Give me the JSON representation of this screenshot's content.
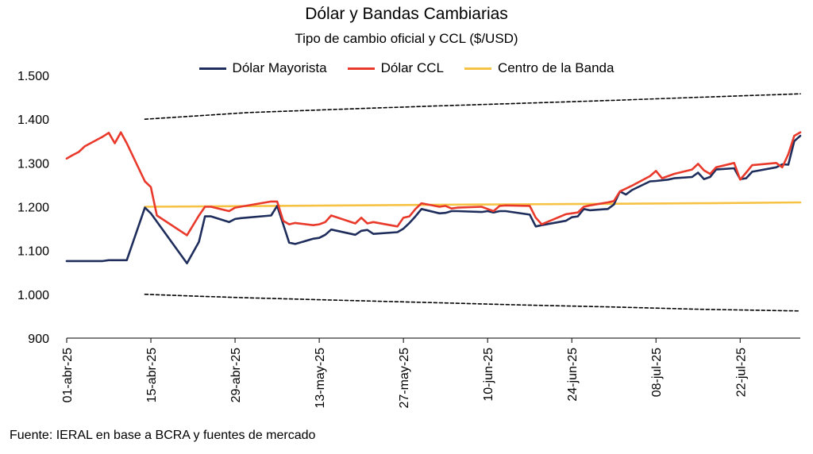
{
  "chart_data": {
    "type": "line",
    "title": "Dólar y Bandas Cambiarias",
    "subtitle": "Tipo de cambio oficial y CCL ($/USD)",
    "xlabel": "",
    "ylabel": "",
    "ylim": [
      900,
      1500
    ],
    "yticks": [
      900,
      1000,
      1100,
      1200,
      1300,
      1400,
      1500
    ],
    "ytick_labels": [
      "900",
      "1.000",
      "1.100",
      "1.200",
      "1.300",
      "1.400",
      "1.500"
    ],
    "x_range": [
      "2025-04-01",
      "2025-08-01"
    ],
    "x_tick_dates": [
      "2025-04-01",
      "2025-04-15",
      "2025-04-29",
      "2025-05-13",
      "2025-05-27",
      "2025-06-10",
      "2025-06-24",
      "2025-07-08",
      "2025-07-22"
    ],
    "x_tick_labels": [
      "01-abr-25",
      "15-abr-25",
      "29-abr-25",
      "13-may-25",
      "27-may-25",
      "10-jun-25",
      "24-jun-25",
      "08-jul-25",
      "22-jul-25"
    ],
    "grid": false,
    "legend_position": "top",
    "series": [
      {
        "name": "Dólar Mayorista",
        "color": "#1f2d5c",
        "style": "solid",
        "points": [
          [
            "2025-04-01",
            1076
          ],
          [
            "2025-04-04",
            1076
          ],
          [
            "2025-04-07",
            1076
          ],
          [
            "2025-04-08",
            1078
          ],
          [
            "2025-04-11",
            1078
          ],
          [
            "2025-04-14",
            1198
          ],
          [
            "2025-04-15",
            1185
          ],
          [
            "2025-04-21",
            1071
          ],
          [
            "2025-04-23",
            1120
          ],
          [
            "2025-04-24",
            1178
          ],
          [
            "2025-04-25",
            1178
          ],
          [
            "2025-04-28",
            1165
          ],
          [
            "2025-04-29",
            1172
          ],
          [
            "2025-04-30",
            1174
          ],
          [
            "2025-05-05",
            1180
          ],
          [
            "2025-05-06",
            1202
          ],
          [
            "2025-05-07",
            1160
          ],
          [
            "2025-05-08",
            1118
          ],
          [
            "2025-05-09",
            1115
          ],
          [
            "2025-05-12",
            1127
          ],
          [
            "2025-05-13",
            1129
          ],
          [
            "2025-05-14",
            1136
          ],
          [
            "2025-05-15",
            1148
          ],
          [
            "2025-05-19",
            1136
          ],
          [
            "2025-05-20",
            1145
          ],
          [
            "2025-05-21",
            1147
          ],
          [
            "2025-05-22",
            1138
          ],
          [
            "2025-05-26",
            1142
          ],
          [
            "2025-05-27",
            1150
          ],
          [
            "2025-05-28",
            1163
          ],
          [
            "2025-05-29",
            1178
          ],
          [
            "2025-05-30",
            1195
          ],
          [
            "2025-06-02",
            1185
          ],
          [
            "2025-06-03",
            1186
          ],
          [
            "2025-06-04",
            1190
          ],
          [
            "2025-06-05",
            1190
          ],
          [
            "2025-06-09",
            1188
          ],
          [
            "2025-06-10",
            1190
          ],
          [
            "2025-06-11",
            1187
          ],
          [
            "2025-06-12",
            1190
          ],
          [
            "2025-06-13",
            1190
          ],
          [
            "2025-06-17",
            1182
          ],
          [
            "2025-06-18",
            1155
          ],
          [
            "2025-06-19",
            1158
          ],
          [
            "2025-06-23",
            1168
          ],
          [
            "2025-06-24",
            1176
          ],
          [
            "2025-06-25",
            1178
          ],
          [
            "2025-06-26",
            1195
          ],
          [
            "2025-06-27",
            1192
          ],
          [
            "2025-06-30",
            1195
          ],
          [
            "2025-07-01",
            1205
          ],
          [
            "2025-07-02",
            1235
          ],
          [
            "2025-07-03",
            1228
          ],
          [
            "2025-07-04",
            1238
          ],
          [
            "2025-07-07",
            1258
          ],
          [
            "2025-07-08",
            1259
          ],
          [
            "2025-07-10",
            1262
          ],
          [
            "2025-07-11",
            1265
          ],
          [
            "2025-07-14",
            1268
          ],
          [
            "2025-07-15",
            1278
          ],
          [
            "2025-07-16",
            1263
          ],
          [
            "2025-07-17",
            1268
          ],
          [
            "2025-07-18",
            1285
          ],
          [
            "2025-07-21",
            1288
          ],
          [
            "2025-07-22",
            1263
          ],
          [
            "2025-07-23",
            1265
          ],
          [
            "2025-07-24",
            1280
          ],
          [
            "2025-07-28",
            1290
          ],
          [
            "2025-07-29",
            1297
          ],
          [
            "2025-07-30",
            1296
          ],
          [
            "2025-07-31",
            1350
          ],
          [
            "2025-08-01",
            1362
          ]
        ]
      },
      {
        "name": "Dólar CCL",
        "color": "#e8392b",
        "style": "solid",
        "points": [
          [
            "2025-04-01",
            1310
          ],
          [
            "2025-04-02",
            1318
          ],
          [
            "2025-04-03",
            1325
          ],
          [
            "2025-04-04",
            1338
          ],
          [
            "2025-04-07",
            1360
          ],
          [
            "2025-04-08",
            1369
          ],
          [
            "2025-04-09",
            1345
          ],
          [
            "2025-04-10",
            1370
          ],
          [
            "2025-04-11",
            1345
          ],
          [
            "2025-04-14",
            1258
          ],
          [
            "2025-04-15",
            1245
          ],
          [
            "2025-04-16",
            1180
          ],
          [
            "2025-04-21",
            1135
          ],
          [
            "2025-04-23",
            1180
          ],
          [
            "2025-04-24",
            1200
          ],
          [
            "2025-04-25",
            1200
          ],
          [
            "2025-04-28",
            1190
          ],
          [
            "2025-04-29",
            1198
          ],
          [
            "2025-05-05",
            1212
          ],
          [
            "2025-05-06",
            1212
          ],
          [
            "2025-05-07",
            1168
          ],
          [
            "2025-05-08",
            1160
          ],
          [
            "2025-05-09",
            1163
          ],
          [
            "2025-05-12",
            1158
          ],
          [
            "2025-05-13",
            1160
          ],
          [
            "2025-05-14",
            1165
          ],
          [
            "2025-05-15",
            1180
          ],
          [
            "2025-05-19",
            1162
          ],
          [
            "2025-05-20",
            1175
          ],
          [
            "2025-05-21",
            1162
          ],
          [
            "2025-05-22",
            1165
          ],
          [
            "2025-05-26",
            1155
          ],
          [
            "2025-05-27",
            1175
          ],
          [
            "2025-05-28",
            1178
          ],
          [
            "2025-05-29",
            1195
          ],
          [
            "2025-05-30",
            1208
          ],
          [
            "2025-06-02",
            1200
          ],
          [
            "2025-06-03",
            1202
          ],
          [
            "2025-06-04",
            1196
          ],
          [
            "2025-06-05",
            1198
          ],
          [
            "2025-06-09",
            1200
          ],
          [
            "2025-06-10",
            1195
          ],
          [
            "2025-06-11",
            1190
          ],
          [
            "2025-06-12",
            1202
          ],
          [
            "2025-06-13",
            1203
          ],
          [
            "2025-06-17",
            1202
          ],
          [
            "2025-06-18",
            1175
          ],
          [
            "2025-06-19",
            1160
          ],
          [
            "2025-06-23",
            1183
          ],
          [
            "2025-06-24",
            1185
          ],
          [
            "2025-06-25",
            1187
          ],
          [
            "2025-06-26",
            1200
          ],
          [
            "2025-06-27",
            1203
          ],
          [
            "2025-06-30",
            1210
          ],
          [
            "2025-07-01",
            1213
          ],
          [
            "2025-07-02",
            1235
          ],
          [
            "2025-07-04",
            1248
          ],
          [
            "2025-07-07",
            1270
          ],
          [
            "2025-07-08",
            1282
          ],
          [
            "2025-07-09",
            1265
          ],
          [
            "2025-07-10",
            1270
          ],
          [
            "2025-07-11",
            1275
          ],
          [
            "2025-07-14",
            1285
          ],
          [
            "2025-07-15",
            1298
          ],
          [
            "2025-07-16",
            1283
          ],
          [
            "2025-07-17",
            1275
          ],
          [
            "2025-07-18",
            1290
          ],
          [
            "2025-07-21",
            1300
          ],
          [
            "2025-07-22",
            1262
          ],
          [
            "2025-07-23",
            1278
          ],
          [
            "2025-07-24",
            1295
          ],
          [
            "2025-07-28",
            1300
          ],
          [
            "2025-07-29",
            1290
          ],
          [
            "2025-07-30",
            1320
          ],
          [
            "2025-07-31",
            1362
          ],
          [
            "2025-08-01",
            1370
          ]
        ]
      },
      {
        "name": "Centro de la Banda",
        "color": "#f6c244",
        "style": "solid",
        "points": [
          [
            "2025-04-14",
            1200
          ],
          [
            "2025-06-08",
            1205
          ],
          [
            "2025-07-15",
            1208
          ],
          [
            "2025-08-01",
            1210
          ]
        ]
      },
      {
        "name": "",
        "color": "#000000",
        "style": "dashed",
        "points": [
          [
            "2025-04-14",
            1400
          ],
          [
            "2025-04-22",
            1407
          ],
          [
            "2025-05-01",
            1415
          ],
          [
            "2025-05-15",
            1422
          ],
          [
            "2025-06-01",
            1430
          ],
          [
            "2025-06-15",
            1436
          ],
          [
            "2025-07-01",
            1443
          ],
          [
            "2025-07-15",
            1450
          ],
          [
            "2025-08-01",
            1458
          ]
        ]
      },
      {
        "name": "",
        "color": "#000000",
        "style": "dashed",
        "points": [
          [
            "2025-04-14",
            1000
          ],
          [
            "2025-04-22",
            996
          ],
          [
            "2025-05-01",
            992
          ],
          [
            "2025-05-15",
            987
          ],
          [
            "2025-06-01",
            981
          ],
          [
            "2025-06-15",
            976
          ],
          [
            "2025-07-01",
            971
          ],
          [
            "2025-07-15",
            966
          ],
          [
            "2025-08-01",
            962
          ]
        ]
      }
    ]
  },
  "source_text": "Fuente: IERAL en base a BCRA y fuentes de mercado"
}
